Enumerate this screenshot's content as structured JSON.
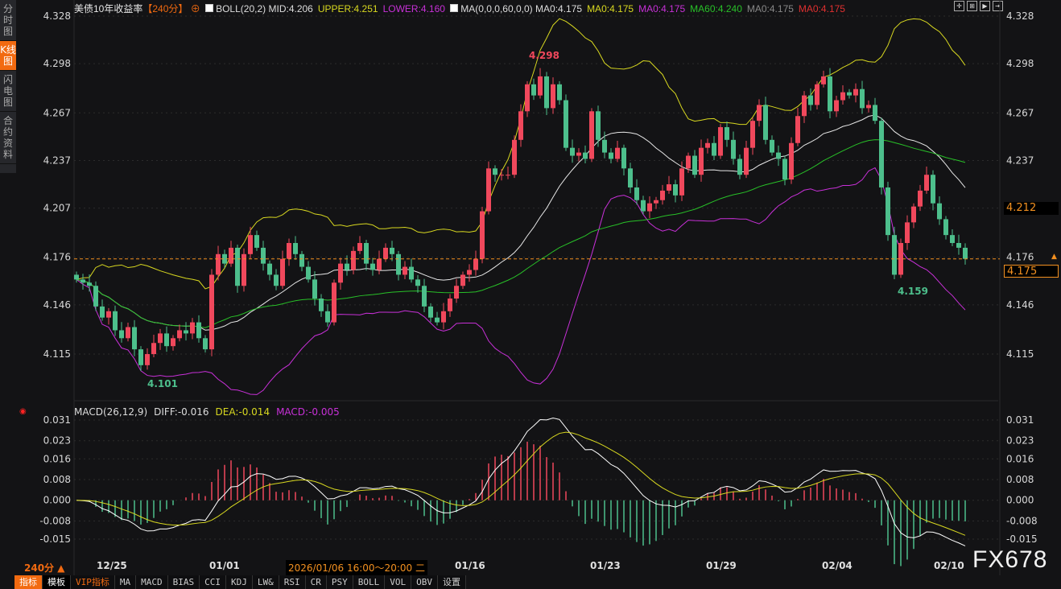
{
  "sidebar": {
    "items": [
      {
        "label": "分时图"
      },
      {
        "label": "K线图",
        "active": true
      },
      {
        "label": "闪电图"
      },
      {
        "label": "合约资料"
      }
    ]
  },
  "legend": {
    "title": "美债10年收益率",
    "period": "【240分】",
    "boll": "BOLL(20,2)",
    "mid": "MID:4.206",
    "upper": "UPPER:4.251",
    "lower": "LOWER:4.160",
    "ma": "MA(0,0,0,60,0,0)",
    "ma0a": "MA0:4.175",
    "ma0b": "MA0:4.175",
    "ma0c": "MA0:4.175",
    "ma60": "MA60:4.240",
    "ma0d": "MA0:4.175",
    "ma0e": "MA0:4.175"
  },
  "macd_legend": {
    "name": "MACD(26,12,9)",
    "diff": "DIFF:-0.016",
    "dea": "DEA:-0.014",
    "macd": "MACD:-0.005"
  },
  "price_tags": {
    "mid": "4.212",
    "current": "4.175"
  },
  "xaxis": {
    "period": "240分 ▲",
    "crosshair_date": "2026/01/06 16:00～20:00 二",
    "labels": [
      "12/25",
      "01/01",
      "01/16",
      "01/23",
      "01/29",
      "02/04",
      "02/10"
    ]
  },
  "toolbar": {
    "items": [
      "指标",
      "模板",
      "VIP指标",
      "MA",
      "MACD",
      "BIAS",
      "CCI",
      "KDJ",
      "LW&",
      "RSI",
      "CR",
      "PSY",
      "BOLL",
      "VOL",
      "OBV",
      "设置"
    ]
  },
  "watermark": "FX678",
  "colors": {
    "up": "#f0485c",
    "down": "#4dbf8c",
    "upper": "#d8d820",
    "lower": "#c830d8",
    "mid": "#e8e8e8",
    "ma60": "#28c028",
    "accent": "#f26a10"
  },
  "chart_data": [
    {
      "type": "candlestick",
      "title": "美债10年收益率",
      "ylim": [
        4.085,
        4.335
      ],
      "yticks": [
        4.328,
        4.298,
        4.267,
        4.237,
        4.207,
        4.176,
        4.146,
        4.115
      ],
      "x_tick_labels": [
        "12/25",
        "01/01",
        "01/16",
        "01/23",
        "01/29",
        "02/04",
        "02/10"
      ],
      "annotations": [
        {
          "text": "4.298",
          "type": "high"
        },
        {
          "text": "4.101",
          "type": "low"
        },
        {
          "text": "4.159",
          "type": "low"
        }
      ],
      "current_price": 4.175,
      "closes": [
        4.162,
        4.16,
        4.158,
        4.145,
        4.138,
        4.142,
        4.13,
        4.125,
        4.132,
        4.118,
        4.108,
        4.115,
        4.122,
        4.128,
        4.12,
        4.125,
        4.13,
        4.128,
        4.135,
        4.125,
        4.118,
        4.165,
        4.178,
        4.172,
        4.182,
        4.158,
        4.178,
        4.19,
        4.182,
        4.172,
        4.165,
        4.158,
        4.175,
        4.185,
        4.178,
        4.17,
        4.162,
        4.15,
        4.142,
        4.135,
        4.16,
        4.172,
        4.168,
        4.18,
        4.185,
        4.172,
        4.168,
        4.175,
        4.182,
        4.178,
        4.165,
        4.17,
        4.162,
        4.158,
        4.145,
        4.138,
        4.135,
        4.142,
        4.15,
        4.158,
        4.165,
        4.168,
        4.175,
        4.205,
        4.232,
        4.228,
        4.228,
        4.228,
        4.25,
        4.268,
        4.285,
        4.278,
        4.29,
        4.27,
        4.285,
        4.275,
        4.245,
        4.24,
        4.242,
        4.238,
        4.268,
        4.25,
        4.242,
        4.238,
        4.245,
        4.232,
        4.22,
        4.212,
        4.205,
        4.21,
        4.212,
        4.218,
        4.222,
        4.215,
        4.232,
        4.24,
        4.228,
        4.245,
        4.248,
        4.24,
        4.258,
        4.25,
        4.238,
        4.228,
        4.245,
        4.262,
        4.272,
        4.25,
        4.242,
        4.238,
        4.225,
        4.248,
        4.265,
        4.278,
        4.272,
        4.285,
        4.29,
        4.268,
        4.275,
        4.28,
        4.278,
        4.282,
        4.27,
        4.272,
        4.262,
        4.22,
        4.19,
        4.165,
        4.185,
        4.198,
        4.208,
        4.218,
        4.228,
        4.21,
        4.2,
        4.19,
        4.185,
        4.182,
        4.175
      ],
      "indicators": [
        "BOLL(20,2)",
        "MA60"
      ]
    },
    {
      "type": "macd",
      "title": "MACD(26,12,9)",
      "ylim": [
        -0.02,
        0.034
      ],
      "yticks": [
        0.031,
        0.023,
        0.016,
        0.008,
        0.0,
        -0.008,
        -0.015
      ]
    }
  ]
}
